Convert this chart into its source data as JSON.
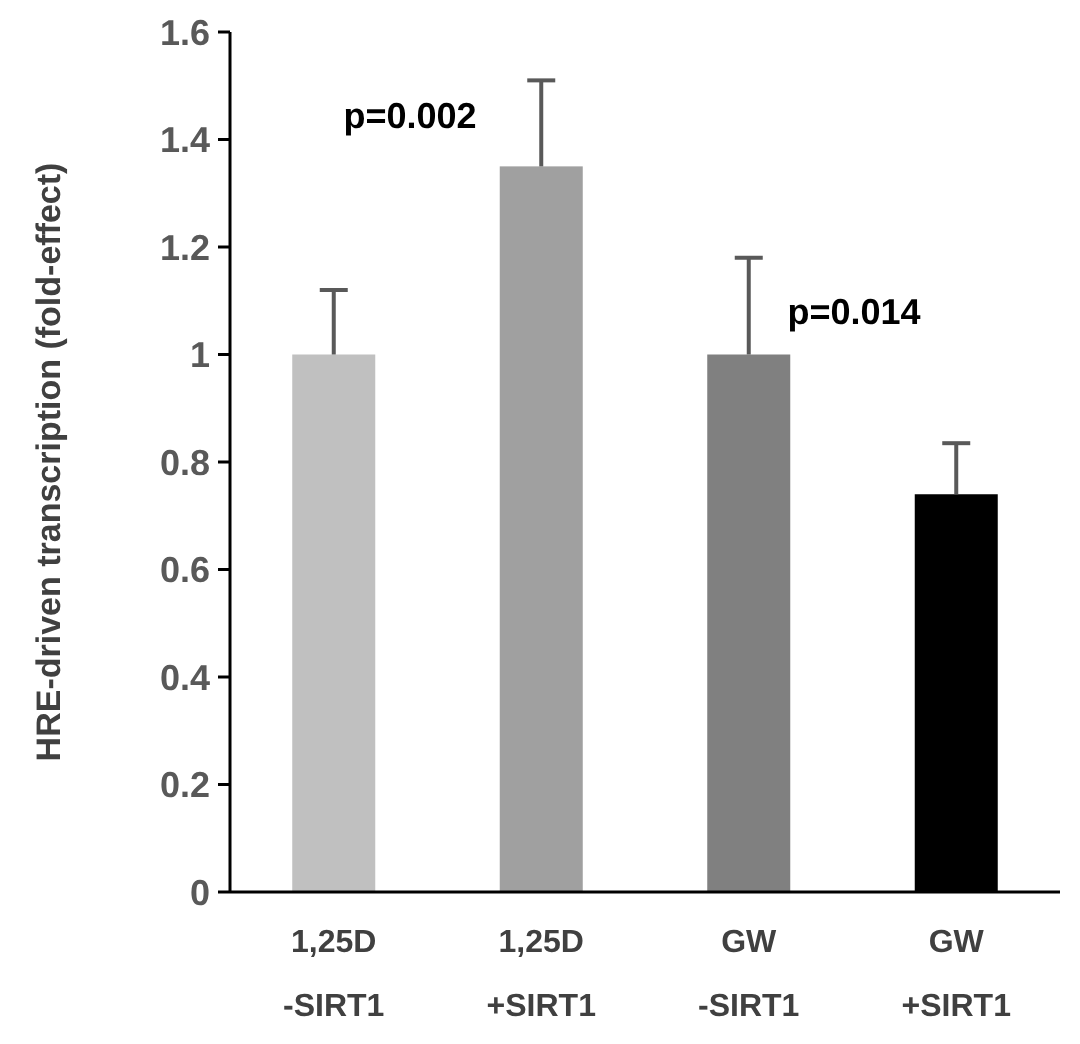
{
  "chart_data": {
    "type": "bar",
    "ylabel": "HRE-driven transcription (fold-effect)",
    "categories": [
      "1,25D\n-SIRT1",
      "1,25D\n+SIRT1",
      "GW\n-SIRT1",
      "GW\n+SIRT1"
    ],
    "values": [
      1.0,
      1.35,
      1.0,
      0.74
    ],
    "colors": [
      "#c0c0c0",
      "#a0a0a0",
      "#808080",
      "#000000"
    ],
    "errors": [
      [
        1.0,
        1.12
      ],
      [
        1.35,
        1.51
      ],
      [
        1.0,
        1.18
      ],
      [
        0.74,
        0.835
      ]
    ],
    "ylim": [
      0,
      1.6
    ],
    "yticks": [
      0,
      0.2,
      0.4,
      0.6,
      0.8,
      1,
      1.2,
      1.4,
      1.6
    ],
    "grid": false,
    "annotations": [
      "p=0.002",
      "p=0.014"
    ]
  }
}
